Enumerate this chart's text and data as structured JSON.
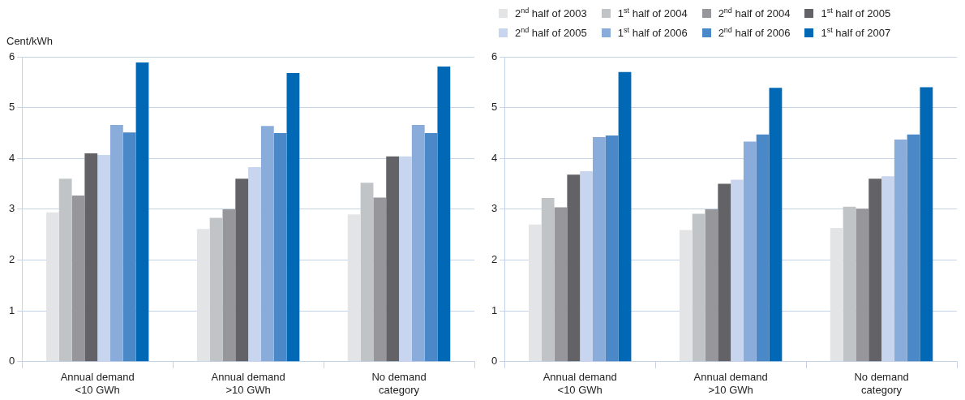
{
  "chart_data": [
    {
      "type": "bar",
      "ylabel": "Cent/kWh",
      "categories": [
        "Annual demand\n<10 GWh",
        "Annual demand\n>10 GWh",
        "No demand\ncategory"
      ],
      "ylim": [
        0,
        6
      ],
      "yticks": [
        0,
        1,
        2,
        3,
        4,
        5,
        6
      ],
      "grid": "y",
      "legend": false,
      "series": [
        {
          "color": "#e3e4e5",
          "values": [
            2.94,
            2.61,
            2.9
          ]
        },
        {
          "color": "#c1c4c6",
          "values": [
            3.6,
            2.83,
            3.52
          ]
        },
        {
          "color": "#97969b",
          "values": [
            3.27,
            3.0,
            3.23
          ]
        },
        {
          "color": "#636267",
          "values": [
            4.1,
            3.6,
            4.04
          ]
        },
        {
          "color": "#c7d5ee",
          "values": [
            4.07,
            3.83,
            4.04
          ]
        },
        {
          "color": "#89acdb",
          "values": [
            4.66,
            4.64,
            4.66
          ]
        },
        {
          "color": "#4a88c8",
          "values": [
            4.51,
            4.5,
            4.5
          ]
        },
        {
          "color": "#0068b5",
          "values": [
            5.89,
            5.68,
            5.81
          ]
        }
      ]
    },
    {
      "type": "bar",
      "categories": [
        "Annual demand\n<10 GWh",
        "Annual demand\n>10 GWh",
        "No demand\ncategory"
      ],
      "ylim": [
        0,
        6
      ],
      "yticks": [
        0,
        1,
        2,
        3,
        4,
        5,
        6
      ],
      "grid": "y",
      "legend": "top",
      "series": [
        {
          "name": "2$^{nd}$ half of 2003",
          "color": "#e3e4e5",
          "values": [
            2.7,
            2.59,
            2.63
          ]
        },
        {
          "name": "1$^{st}$ half of 2004",
          "color": "#c1c4c6",
          "values": [
            3.22,
            2.91,
            3.05
          ]
        },
        {
          "name": "2$^{nd}$ half of 2004",
          "color": "#97969b",
          "values": [
            3.04,
            3.0,
            3.01
          ]
        },
        {
          "name": "1$^{st}$ half of 2005",
          "color": "#636267",
          "values": [
            3.68,
            3.5,
            3.6
          ]
        },
        {
          "name": "2$^{nd}$ half of 2005",
          "color": "#c7d5ee",
          "values": [
            3.75,
            3.58,
            3.65
          ]
        },
        {
          "name": "1$^{st}$ half of 2006",
          "color": "#89acdb",
          "values": [
            4.42,
            4.33,
            4.37
          ]
        },
        {
          "name": "2$^{nd}$ half of 2006",
          "color": "#4a88c8",
          "values": [
            4.45,
            4.47,
            4.47
          ]
        },
        {
          "name": "1$^{st}$ half of 2007",
          "color": "#0068b5",
          "values": [
            5.7,
            5.39,
            5.4
          ]
        }
      ]
    }
  ]
}
